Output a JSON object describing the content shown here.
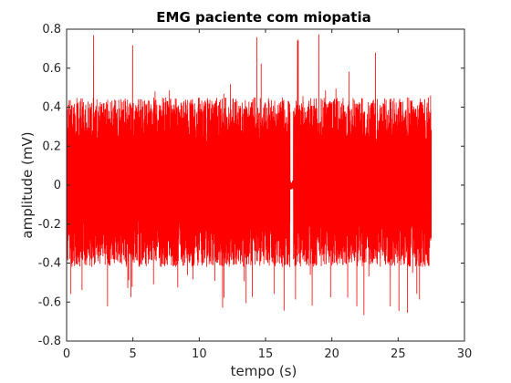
{
  "chart_data": {
    "type": "line",
    "title": "EMG paciente com miopatia",
    "xlabel": "tempo (s)",
    "ylabel": "amplitude (mV)",
    "xlim": [
      0,
      30
    ],
    "ylim": [
      -0.8,
      0.8
    ],
    "xticks": [
      0,
      5,
      10,
      15,
      20,
      25,
      30
    ],
    "yticks": [
      -0.8,
      -0.6,
      -0.4,
      -0.2,
      0,
      0.2,
      0.4,
      0.6,
      0.8
    ],
    "xtick_labels": [
      "0",
      "5",
      "10",
      "15",
      "20",
      "25",
      "30"
    ],
    "ytick_labels": [
      "-0.8",
      "-0.6",
      "-0.4",
      "-0.2",
      "0",
      "0.2",
      "0.4",
      "0.6",
      "0.8"
    ],
    "grid": false,
    "series": [
      {
        "color": "#ff0000",
        "x_start": 0,
        "x_end": 27.5,
        "typical_range": [
          -0.42,
          0.45
        ],
        "peak_max": 0.78,
        "peak_min": -0.67,
        "gap": [
          16.85,
          17.1
        ]
      }
    ]
  },
  "colors": {
    "series": "#ff0000",
    "axes": "#262626",
    "background": "#ffffff"
  }
}
